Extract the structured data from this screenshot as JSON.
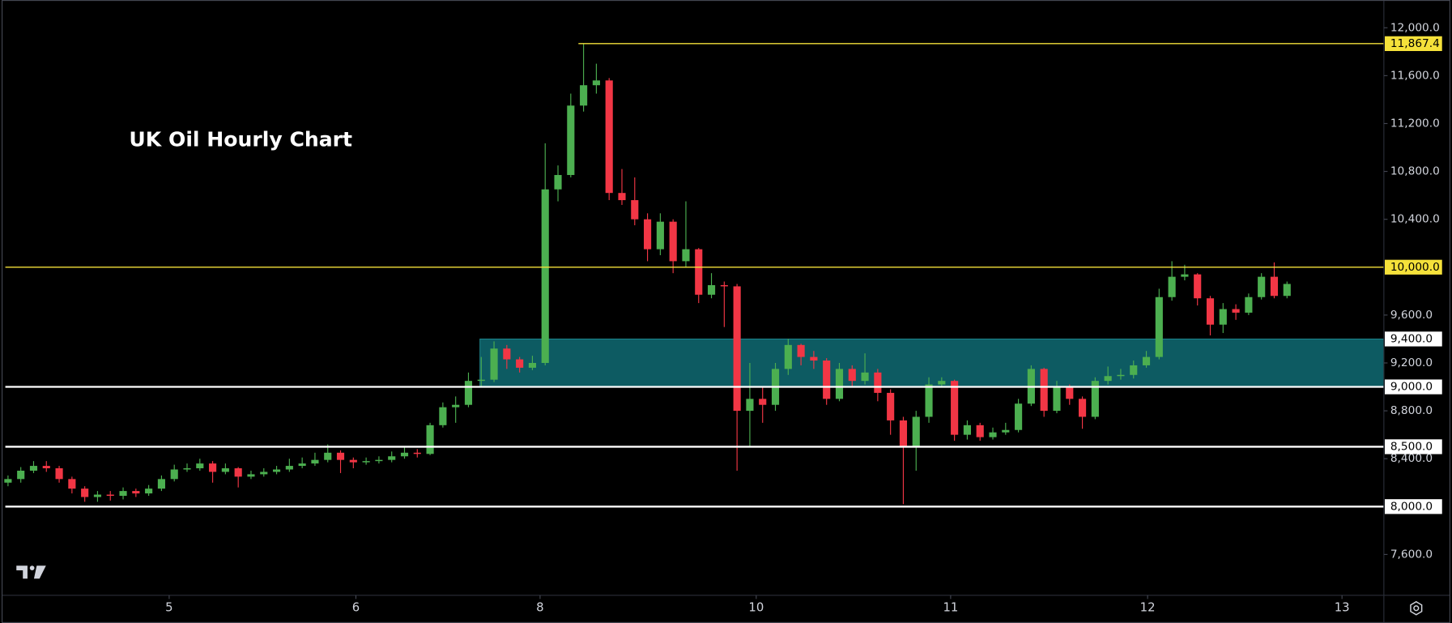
{
  "chart_data": {
    "type": "candlestick",
    "title": "UK Oil Hourly Chart",
    "up_color": "#4caf50",
    "down_color": "#f23645",
    "xlim": [
      -0.5,
      107.5
    ],
    "ylim": [
      7290,
      12232
    ],
    "xticks": [
      {
        "value": 12.6,
        "label": "5"
      },
      {
        "value": 27.2,
        "label": "6"
      },
      {
        "value": 41.6,
        "label": "8"
      },
      {
        "value": 58.5,
        "label": "10"
      },
      {
        "value": 73.7,
        "label": "11"
      },
      {
        "value": 89.1,
        "label": "12"
      },
      {
        "value": 104.3,
        "label": "13"
      }
    ],
    "yticks": [
      {
        "value": 12000,
        "label": "12,000.0"
      },
      {
        "value": 11600,
        "label": "11,600.0"
      },
      {
        "value": 11200,
        "label": "11,200.0"
      },
      {
        "value": 10800,
        "label": "10,800.0"
      },
      {
        "value": 10400,
        "label": "10,400.0"
      },
      {
        "value": 9600,
        "label": "9,600.0"
      },
      {
        "value": 9200,
        "label": "9,200.0"
      },
      {
        "value": 8800,
        "label": "8,800.0"
      },
      {
        "value": 8400,
        "label": "8,400.0"
      },
      {
        "value": 7600,
        "label": "7,600.0"
      }
    ],
    "zone": {
      "low": 9000,
      "high": 9400,
      "label": "9,400.0",
      "x_start": 36.9,
      "color": "#0d5b62"
    },
    "levels": [
      {
        "value": 11867.4,
        "label": "11,867.4",
        "color": "#f5e13a",
        "x_start": 44.6
      },
      {
        "value": 10000,
        "label": "10,000.0",
        "color": "#f5e13a"
      },
      {
        "value": 9000,
        "label": "9,000.0",
        "color": "#ffffff"
      },
      {
        "value": 8500,
        "label": "8,500.0",
        "color": "#ffffff"
      },
      {
        "value": 8000,
        "label": "8,000.0",
        "color": "#ffffff"
      }
    ],
    "open": [
      8200,
      8230,
      8300,
      8340,
      8320,
      8230,
      8150,
      8080,
      8100,
      8090,
      8130,
      8110,
      8150,
      8230,
      8310,
      8320,
      8360,
      8290,
      8320,
      8250,
      8270,
      8290,
      8310,
      8340,
      8360,
      8390,
      8450,
      8390,
      8370,
      8380,
      8390,
      8420,
      8450,
      8440,
      8680,
      8830,
      8850,
      9050,
      9060,
      9320,
      9230,
      9160,
      9200,
      10650,
      10770,
      11350,
      11520,
      11560,
      10620,
      10560,
      10400,
      10150,
      10380,
      10050,
      10150,
      9770,
      9850,
      9840,
      8800,
      8900,
      8850,
      9150,
      9350,
      9250,
      9220,
      8900,
      9150,
      9050,
      9120,
      8950,
      8720,
      8500,
      8750,
      9020,
      9050,
      8600,
      8680,
      8580,
      8620,
      8640,
      8860,
      9150,
      8800,
      9000,
      8900,
      8750,
      9050,
      9090,
      9100,
      9180,
      9250,
      9750,
      9920,
      9940,
      9740,
      9520,
      9650,
      9620,
      9750,
      9920,
      9760
    ],
    "high": [
      8260,
      8330,
      8380,
      8380,
      8340,
      8250,
      8170,
      8130,
      8130,
      8160,
      8150,
      8180,
      8260,
      8350,
      8360,
      8400,
      8380,
      8360,
      8330,
      8300,
      8320,
      8340,
      8400,
      8410,
      8450,
      8520,
      8470,
      8410,
      8410,
      8420,
      8460,
      8500,
      8480,
      8700,
      8870,
      8920,
      9120,
      9250,
      9380,
      9350,
      9250,
      9260,
      11035,
      10850,
      11450,
      11867,
      11700,
      11580,
      10820,
      10750,
      10450,
      10450,
      10400,
      10550,
      10160,
      9950,
      9880,
      9860,
      9200,
      9000,
      9200,
      9400,
      9360,
      9300,
      9240,
      9200,
      9180,
      9280,
      9150,
      8980,
      8750,
      8800,
      9080,
      9080,
      9060,
      8720,
      8700,
      8660,
      8700,
      8900,
      9180,
      9160,
      9050,
      9020,
      8920,
      9080,
      9170,
      9150,
      9220,
      9300,
      9820,
      10050,
      10020,
      9950,
      9760,
      9700,
      9690,
      9780,
      9950,
      10040,
      9880
    ],
    "low": [
      8170,
      8200,
      8280,
      8290,
      8200,
      8110,
      8040,
      8040,
      8050,
      8060,
      8080,
      8090,
      8130,
      8210,
      8290,
      8300,
      8200,
      8270,
      8160,
      8230,
      8250,
      8270,
      8290,
      8320,
      8340,
      8370,
      8280,
      8320,
      8350,
      8360,
      8370,
      8400,
      8410,
      8430,
      8660,
      8700,
      8830,
      9000,
      9040,
      9150,
      9120,
      9140,
      9180,
      10550,
      10750,
      11300,
      11450,
      10560,
      10520,
      10350,
      10050,
      10100,
      9950,
      10000,
      9700,
      9740,
      9500,
      8300,
      8500,
      8700,
      8800,
      9100,
      9180,
      9150,
      8850,
      8880,
      9000,
      9020,
      8880,
      8600,
      8020,
      8300,
      8700,
      9000,
      8550,
      8560,
      8550,
      8560,
      8600,
      8620,
      8840,
      8750,
      8780,
      8850,
      8650,
      8730,
      9020,
      9060,
      9070,
      9160,
      9230,
      9720,
      9890,
      9680,
      9430,
      9450,
      9560,
      9600,
      9730,
      9740,
      9740
    ],
    "close": [
      8230,
      8300,
      8340,
      8320,
      8230,
      8150,
      8080,
      8100,
      8090,
      8130,
      8110,
      8150,
      8230,
      8310,
      8320,
      8360,
      8290,
      8320,
      8250,
      8270,
      8290,
      8310,
      8340,
      8360,
      8390,
      8450,
      8390,
      8370,
      8380,
      8390,
      8420,
      8450,
      8440,
      8680,
      8830,
      8850,
      9050,
      9060,
      9320,
      9230,
      9160,
      9200,
      10650,
      10770,
      11350,
      11520,
      11560,
      10620,
      10560,
      10400,
      10150,
      10380,
      10050,
      10150,
      9770,
      9850,
      9840,
      8800,
      8900,
      8850,
      9150,
      9350,
      9250,
      9220,
      8900,
      9150,
      9050,
      9120,
      8950,
      8720,
      8500,
      8750,
      9020,
      9050,
      8600,
      8680,
      8580,
      8620,
      8640,
      8860,
      9150,
      8800,
      9000,
      8900,
      8750,
      9050,
      9090,
      9100,
      9180,
      9250,
      9750,
      9920,
      9940,
      9740,
      9520,
      9650,
      9620,
      9750,
      9920,
      9760,
      9860
    ]
  }
}
